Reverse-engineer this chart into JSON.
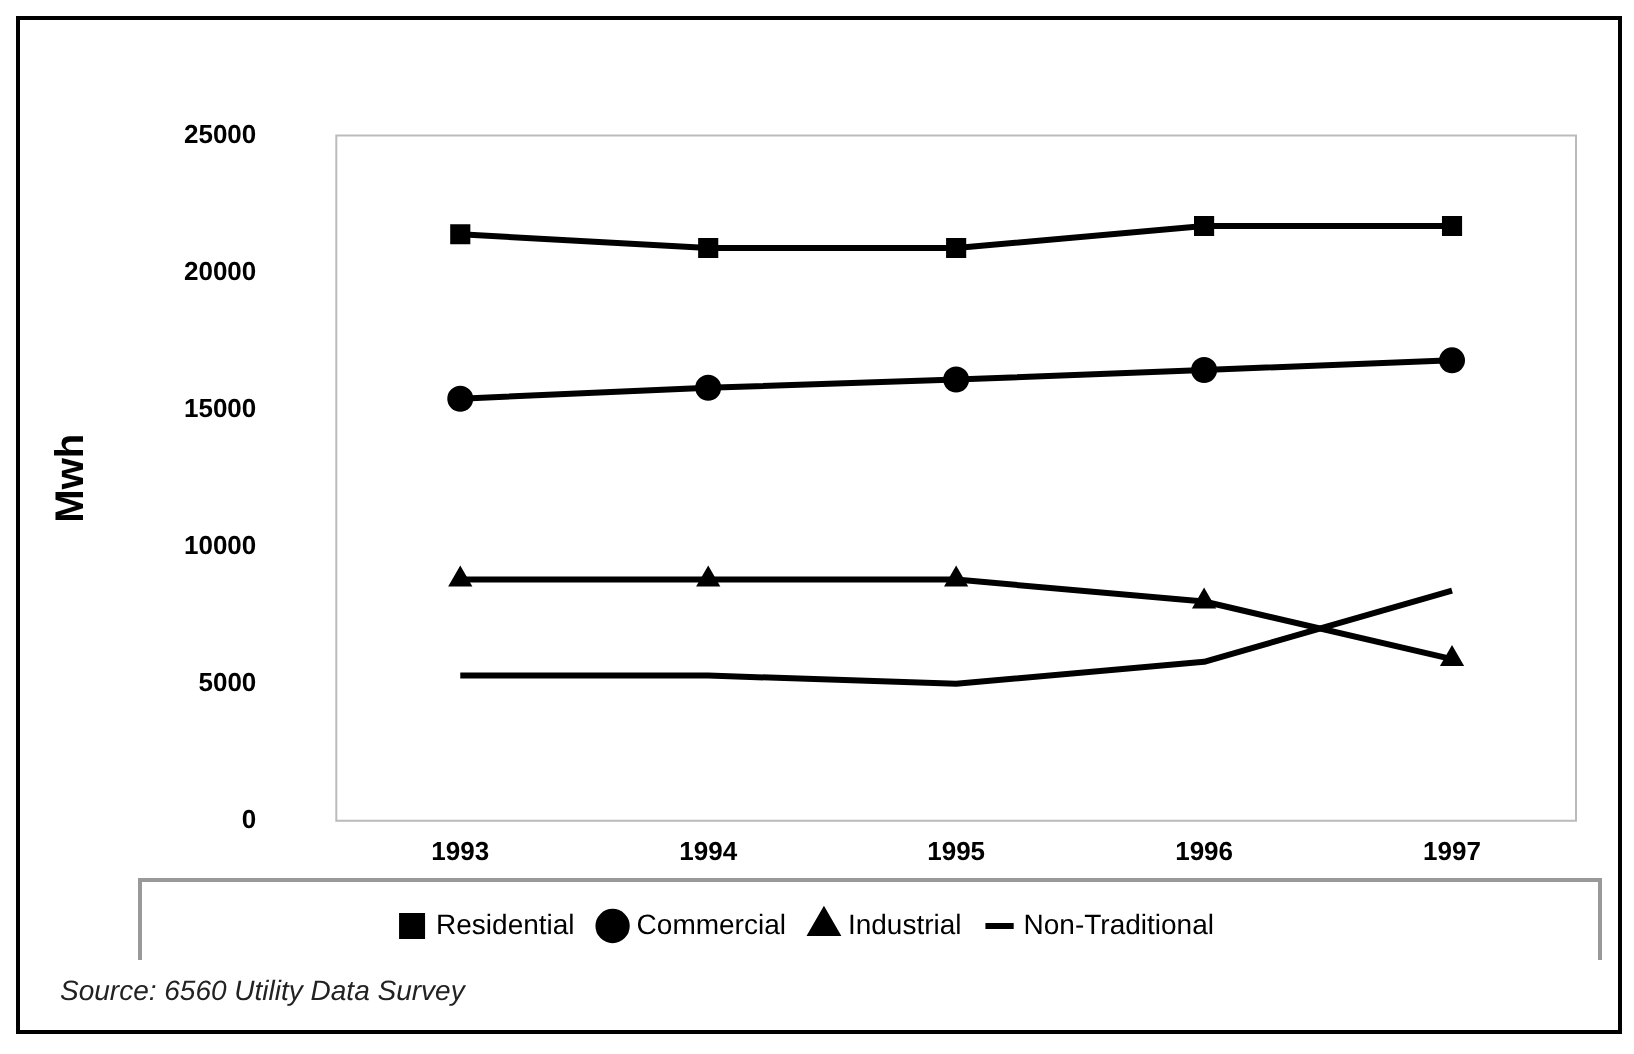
{
  "chart_data": {
    "type": "line",
    "ylabel": "Mwh",
    "categories": [
      "1993",
      "1994",
      "1995",
      "1996",
      "1997"
    ],
    "series": [
      {
        "name": "Residential",
        "color": "#000000",
        "marker": "square",
        "values": [
          21400,
          20900,
          20900,
          21700,
          21700
        ]
      },
      {
        "name": "Commercial",
        "color": "#000000",
        "marker": "circle",
        "values": [
          15400,
          15800,
          16100,
          16450,
          16800
        ]
      },
      {
        "name": "Industrial",
        "color": "#000000",
        "marker": "triangle",
        "values": [
          8800,
          8800,
          8800,
          8000,
          5900
        ]
      },
      {
        "name": "Non-Traditional",
        "color": "#000000",
        "marker": "none",
        "values": [
          5300,
          5300,
          5000,
          5800,
          8400
        ]
      }
    ],
    "ylim": [
      0,
      25000
    ],
    "yticks": [
      0,
      5000,
      10000,
      15000,
      20000,
      25000
    ],
    "grid": false,
    "legend": "bottom",
    "line_style": "solid",
    "annotations": [
      "Source: 6560 Utility Data Survey"
    ]
  }
}
